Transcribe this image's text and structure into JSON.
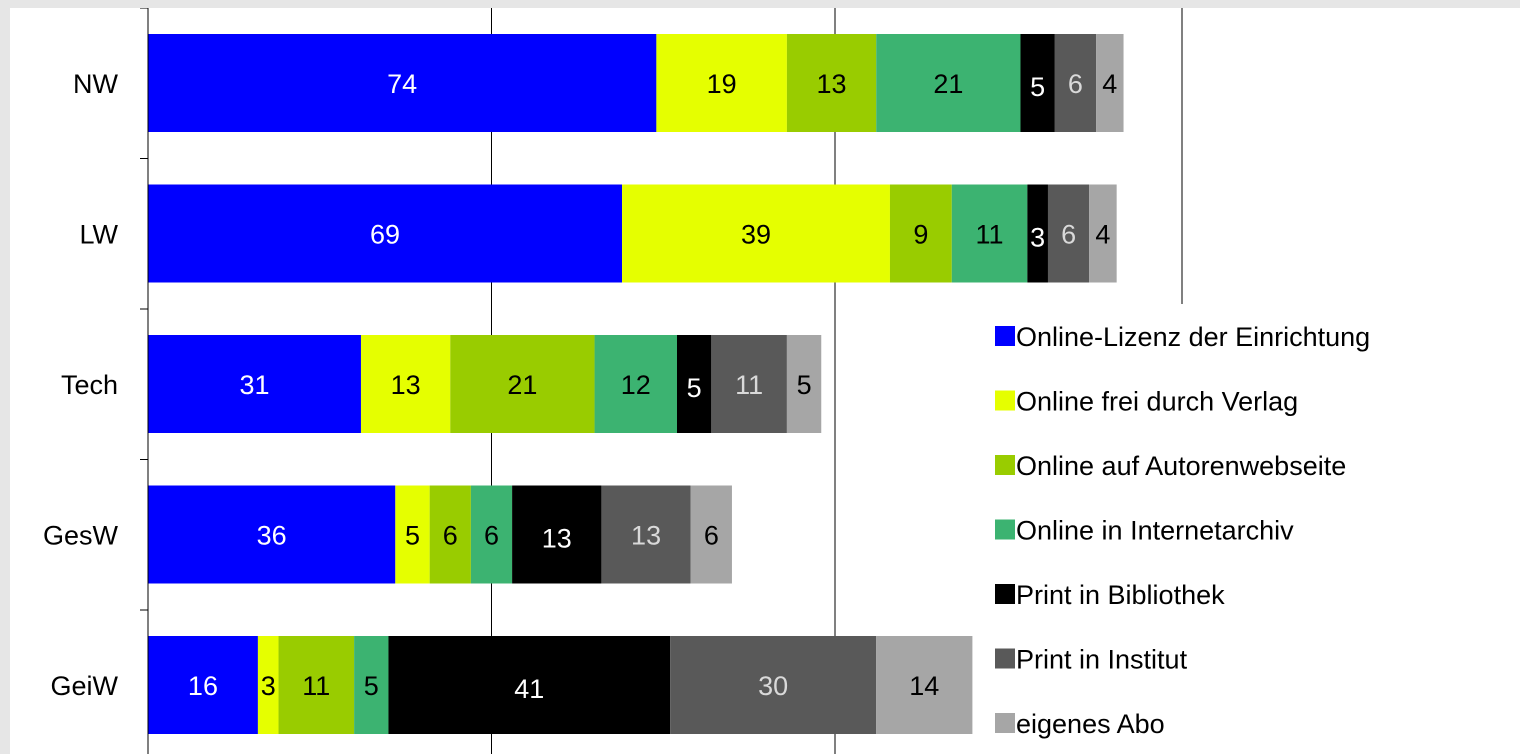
{
  "chart_data": {
    "type": "bar",
    "orientation": "horizontal",
    "stacked": true,
    "categories": [
      "NW",
      "LW",
      "Tech",
      "GesW",
      "GeiW"
    ],
    "series": [
      {
        "name": "Online-Lizenz der Einrichtung",
        "color": "#0000ff",
        "label_color": "#ffffff",
        "values": [
          74,
          69,
          31,
          36,
          16
        ]
      },
      {
        "name": "Online frei durch Verlag",
        "color": "#e5ff00",
        "label_color": "#000000",
        "values": [
          19,
          39,
          13,
          5,
          3
        ]
      },
      {
        "name": "Online auf Autorenwebseite",
        "color": "#99cc00",
        "label_color": "#000000",
        "values": [
          13,
          9,
          21,
          6,
          11
        ]
      },
      {
        "name": "Online in Internetarchiv",
        "color": "#3cb371",
        "label_color": "#000000",
        "values": [
          21,
          11,
          12,
          6,
          5
        ]
      },
      {
        "name": "Print in Bibliothek",
        "color": "#000000",
        "label_color": "#ffffff",
        "values": [
          5,
          3,
          5,
          13,
          41
        ]
      },
      {
        "name": "Print in Institut",
        "color": "#595959",
        "label_color": "#d9d9d9",
        "values": [
          6,
          6,
          11,
          13,
          30
        ]
      },
      {
        "name": "eigenes Abo",
        "color": "#a6a6a6",
        "label_color": "#000000",
        "values": [
          4,
          4,
          5,
          6,
          14
        ]
      }
    ],
    "xlim": [
      0,
      150
    ],
    "grid": "vertical",
    "legend": "right"
  }
}
